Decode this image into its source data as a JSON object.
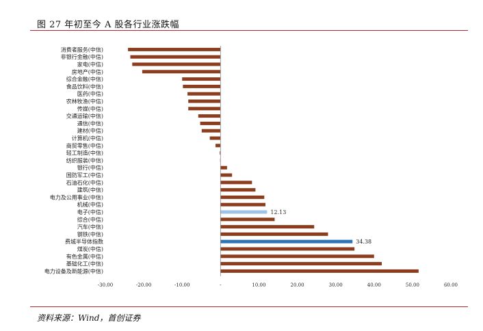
{
  "header": {
    "title": "图 27 年初至今 A 股各行业涨跌幅"
  },
  "footer": {
    "source": "资料来源：Wind，首创证券"
  },
  "colors": {
    "default": "#8b3d1d",
    "highlight_light": "#9dc3e6",
    "highlight_dark": "#2e75b6",
    "rule": "#b3262b"
  },
  "chart_data": {
    "type": "bar",
    "orientation": "horizontal",
    "title": "",
    "xlabel": "",
    "ylabel": "",
    "xlim": [
      -30,
      60
    ],
    "x_ticks": [
      -30,
      -20,
      -10,
      0,
      10,
      20,
      30,
      40,
      50,
      60
    ],
    "x_tick_labels": [
      "-30.00",
      "-20.00",
      "-10.00",
      "-",
      "10.00",
      "20.00",
      "30.00",
      "40.00",
      "50.00",
      "60.00"
    ],
    "grid": false,
    "legend": "none",
    "categories": [
      "消费者服务(中信)",
      "非银行金融(中信)",
      "家电(中信)",
      "房地产(中信)",
      "综合金融(中信)",
      "食品饮料(中信)",
      "医药(中信)",
      "农林牧渔(中信)",
      "传媒(中信)",
      "交通运输(中信)",
      "通信(中信)",
      "建材(中信)",
      "计算机(中信)",
      "商贸零售(中信)",
      "轻工制造(中信)",
      "纺织服装(中信)",
      "银行(中信)",
      "国防军工(中信)",
      "石油石化(中信)",
      "建筑(中信)",
      "电力及公用事业(中信)",
      "机械(中信)",
      "电子(中信)",
      "综合(中信)",
      "汽车(中信)",
      "钢铁(中信)",
      "费城半导体指数",
      "煤炭(中信)",
      "有色金属(中信)",
      "基础化工(中信)",
      "电力设备及新能源(中信)"
    ],
    "values": [
      -24.1,
      -23.5,
      -23.0,
      -20.4,
      -10.0,
      -9.8,
      -8.6,
      -8.4,
      -8.4,
      -5.8,
      -5.3,
      -4.9,
      -2.8,
      -1.3,
      -0.2,
      -0.1,
      1.7,
      3.0,
      8.2,
      9.1,
      11.4,
      11.7,
      12.13,
      14.1,
      24.4,
      28.0,
      34.38,
      34.9,
      40.0,
      42.0,
      51.6
    ],
    "highlights": {
      "电子(中信)": {
        "color": "#9dc3e6",
        "label": "12.13"
      },
      "费城半导体指数": {
        "color": "#2e75b6",
        "label": "34.38"
      }
    }
  }
}
